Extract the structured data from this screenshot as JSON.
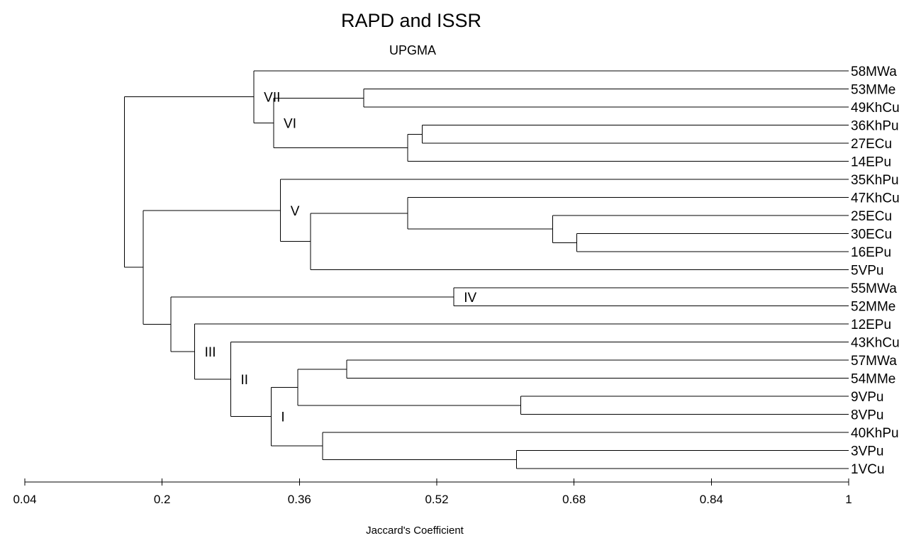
{
  "title": "RAPD and ISSR",
  "subtitle": "UPGMA",
  "x_axis": {
    "label": "Jaccard's Coefficient",
    "min": 0.04,
    "max": 1.0,
    "ticks": [
      "0.04",
      "0.2",
      "0.36",
      "0.52",
      "0.68",
      "0.84",
      "1"
    ]
  },
  "leaves": [
    "58MWa",
    "53MMe",
    "49KhCu",
    "36KhPu",
    "27ECu",
    "14EPu",
    "35KhPu",
    "47KhCu",
    "25ECu",
    "30ECu",
    "16EPu",
    "5VPu",
    "55MWa",
    "52MMe",
    "12EPu",
    "43KhCu",
    "57MWa",
    "54MMe",
    "9VPu",
    "8VPu",
    "40KhPu",
    "3VPu",
    "1VCu"
  ],
  "merges": [
    {
      "id": "c1",
      "children": [
        "53MMe",
        "49KhCu"
      ],
      "height": 0.435
    },
    {
      "id": "c2",
      "children": [
        "36KhPu",
        "27ECu"
      ],
      "height": 0.503
    },
    {
      "id": "c3",
      "children": [
        "c2",
        "14EPu"
      ],
      "height": 0.486
    },
    {
      "id": "VI",
      "children": [
        "c1",
        "c3"
      ],
      "height": 0.33
    },
    {
      "id": "VII",
      "children": [
        "58MWa",
        "VI"
      ],
      "height": 0.307
    },
    {
      "id": "c6",
      "children": [
        "30ECu",
        "16EPu"
      ],
      "height": 0.683
    },
    {
      "id": "c7",
      "children": [
        "25ECu",
        "c6"
      ],
      "height": 0.655
    },
    {
      "id": "c8",
      "children": [
        "47KhCu",
        "c7"
      ],
      "height": 0.486
    },
    {
      "id": "c9",
      "children": [
        "c8",
        "5VPu"
      ],
      "height": 0.373
    },
    {
      "id": "V",
      "children": [
        "35KhPu",
        "c9"
      ],
      "height": 0.338
    },
    {
      "id": "IV",
      "children": [
        "55MWa",
        "52MMe"
      ],
      "height": 0.54
    },
    {
      "id": "c12",
      "children": [
        "57MWa",
        "54MMe"
      ],
      "height": 0.415
    },
    {
      "id": "c13",
      "children": [
        "9VPu",
        "8VPu"
      ],
      "height": 0.618
    },
    {
      "id": "c14",
      "children": [
        "c12",
        "c13"
      ],
      "height": 0.358
    },
    {
      "id": "c15",
      "children": [
        "3VPu",
        "1VCu"
      ],
      "height": 0.613
    },
    {
      "id": "c16",
      "children": [
        "40KhPu",
        "c15"
      ],
      "height": 0.387
    },
    {
      "id": "I",
      "children": [
        "c14",
        "c16"
      ],
      "height": 0.327
    },
    {
      "id": "II",
      "children": [
        "43KhCu",
        "I"
      ],
      "height": 0.28
    },
    {
      "id": "III",
      "children": [
        "12EPu",
        "II"
      ],
      "height": 0.238
    },
    {
      "id": "c20",
      "children": [
        "IV",
        "III"
      ],
      "height": 0.21
    },
    {
      "id": "c21",
      "children": [
        "V",
        "c20"
      ],
      "height": 0.178
    },
    {
      "id": "root",
      "children": [
        "VII",
        "c21"
      ],
      "height": 0.156
    }
  ],
  "group_labels": [
    {
      "text": "VII",
      "node": "VII"
    },
    {
      "text": "VI",
      "node": "VI"
    },
    {
      "text": "V",
      "node": "V"
    },
    {
      "text": "IV",
      "node": "IV"
    },
    {
      "text": "III",
      "node": "III"
    },
    {
      "text": "II",
      "node": "II"
    },
    {
      "text": "I",
      "node": "I"
    }
  ]
}
